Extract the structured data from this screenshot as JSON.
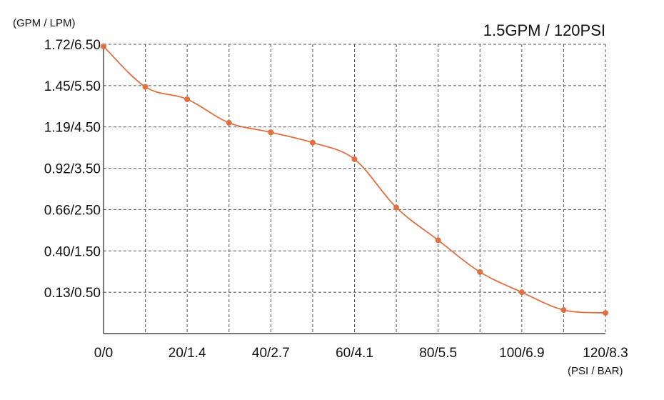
{
  "chart_data": {
    "type": "line",
    "title": "1.5GPM / 120PSI",
    "ylabel": "(GPM / LPM)",
    "xlabel": "(PSI / BAR)",
    "x_tick_labels": [
      "0/0",
      "20/1.4",
      "40/2.7",
      "60/4.1",
      "80/5.5",
      "100/6.9",
      "120/8.3"
    ],
    "x_ticks": [
      0,
      20,
      40,
      60,
      80,
      100,
      120
    ],
    "y_tick_labels": [
      "1.72/6.50",
      "1.45/5.50",
      "1.19/4.50",
      "0.92/3.50",
      "0.66/2.50",
      "0.40/1.50",
      "0.13/0.50"
    ],
    "y_ticks": [
      6.5,
      5.5,
      4.5,
      3.5,
      2.5,
      1.5,
      0.5
    ],
    "xlim": [
      0,
      120
    ],
    "ylim": [
      -0.5,
      6.5
    ],
    "grid": true,
    "series": [
      {
        "color": "#e07040",
        "x": [
          0,
          10,
          20,
          30,
          40,
          50,
          60,
          70,
          80,
          90,
          100,
          110,
          120
        ],
        "y": [
          6.45,
          5.47,
          5.17,
          4.6,
          4.37,
          4.12,
          3.72,
          2.55,
          1.76,
          0.99,
          0.5,
          0.07,
          0.0
        ]
      }
    ]
  }
}
